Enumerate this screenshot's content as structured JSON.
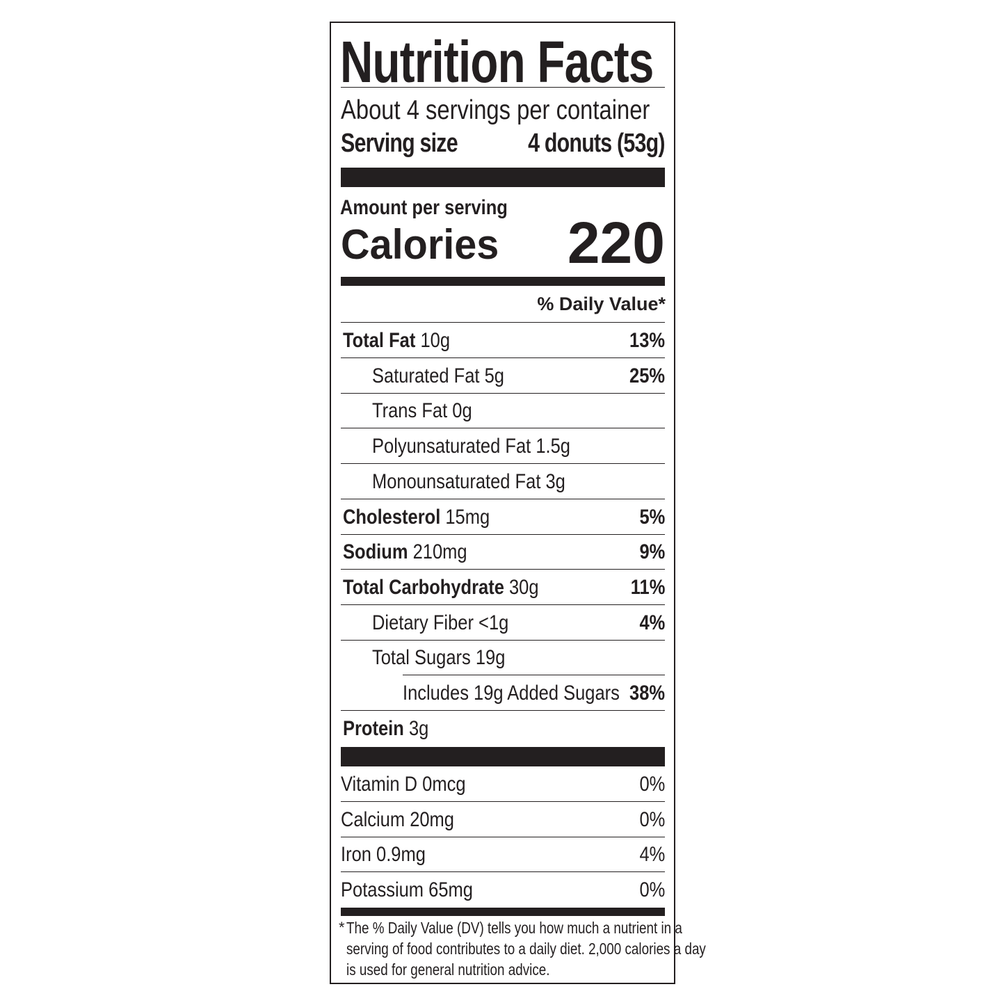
{
  "title": "Nutrition Facts",
  "servings_per_container": "About 4 servings per container",
  "serving_size_label": "Serving size",
  "serving_size_value": "4 donuts (53g)",
  "amount_per_serving": "Amount per serving",
  "calories_label": "Calories",
  "calories_value": "220",
  "daily_value_header": "% Daily Value*",
  "nutrients": [
    {
      "name": "Total Fat",
      "amount": "10g",
      "dv": "13%",
      "indent": 0,
      "bold": true
    },
    {
      "name": "Saturated Fat",
      "amount": "5g",
      "dv": "25%",
      "indent": 1,
      "bold": false
    },
    {
      "name": "Trans Fat",
      "amount": "0g",
      "dv": "",
      "indent": 1,
      "bold": false
    },
    {
      "name": "Polyunsaturated Fat",
      "amount": "1.5g",
      "dv": "",
      "indent": 1,
      "bold": false
    },
    {
      "name": "Monounsaturated Fat",
      "amount": "3g",
      "dv": "",
      "indent": 1,
      "bold": false
    },
    {
      "name": "Cholesterol",
      "amount": "15mg",
      "dv": "5%",
      "indent": 0,
      "bold": true
    },
    {
      "name": "Sodium",
      "amount": "210mg",
      "dv": "9%",
      "indent": 0,
      "bold": true
    },
    {
      "name": "Total Carbohydrate",
      "amount": "30g",
      "dv": "11%",
      "indent": 0,
      "bold": true
    },
    {
      "name": "Dietary Fiber",
      "amount": "<1g",
      "dv": "4%",
      "indent": 1,
      "bold": false
    },
    {
      "name": "Total Sugars",
      "amount": "19g",
      "dv": "",
      "indent": 1,
      "bold": false
    },
    {
      "name": "Includes 19g Added Sugars",
      "amount": "",
      "dv": "38%",
      "indent": 2,
      "bold": false
    },
    {
      "name": "Protein",
      "amount": "3g",
      "dv": "",
      "indent": 0,
      "bold": true
    }
  ],
  "vitamins": [
    {
      "name": "Vitamin D",
      "amount": "0mcg",
      "dv": "0%"
    },
    {
      "name": "Calcium",
      "amount": "20mg",
      "dv": "0%"
    },
    {
      "name": "Iron",
      "amount": "0.9mg",
      "dv": "4%"
    },
    {
      "name": "Potassium",
      "amount": "65mg",
      "dv": "0%"
    }
  ],
  "footnote": {
    "asterisk": "*",
    "line1": "The % Daily Value (DV) tells you how much a nutrient in a",
    "line2": "serving of food contributes to a daily diet. 2,000 calories a day",
    "line3": "is used for general nutrition advice."
  },
  "colors": {
    "ink": "#231f20",
    "background": "#ffffff"
  }
}
